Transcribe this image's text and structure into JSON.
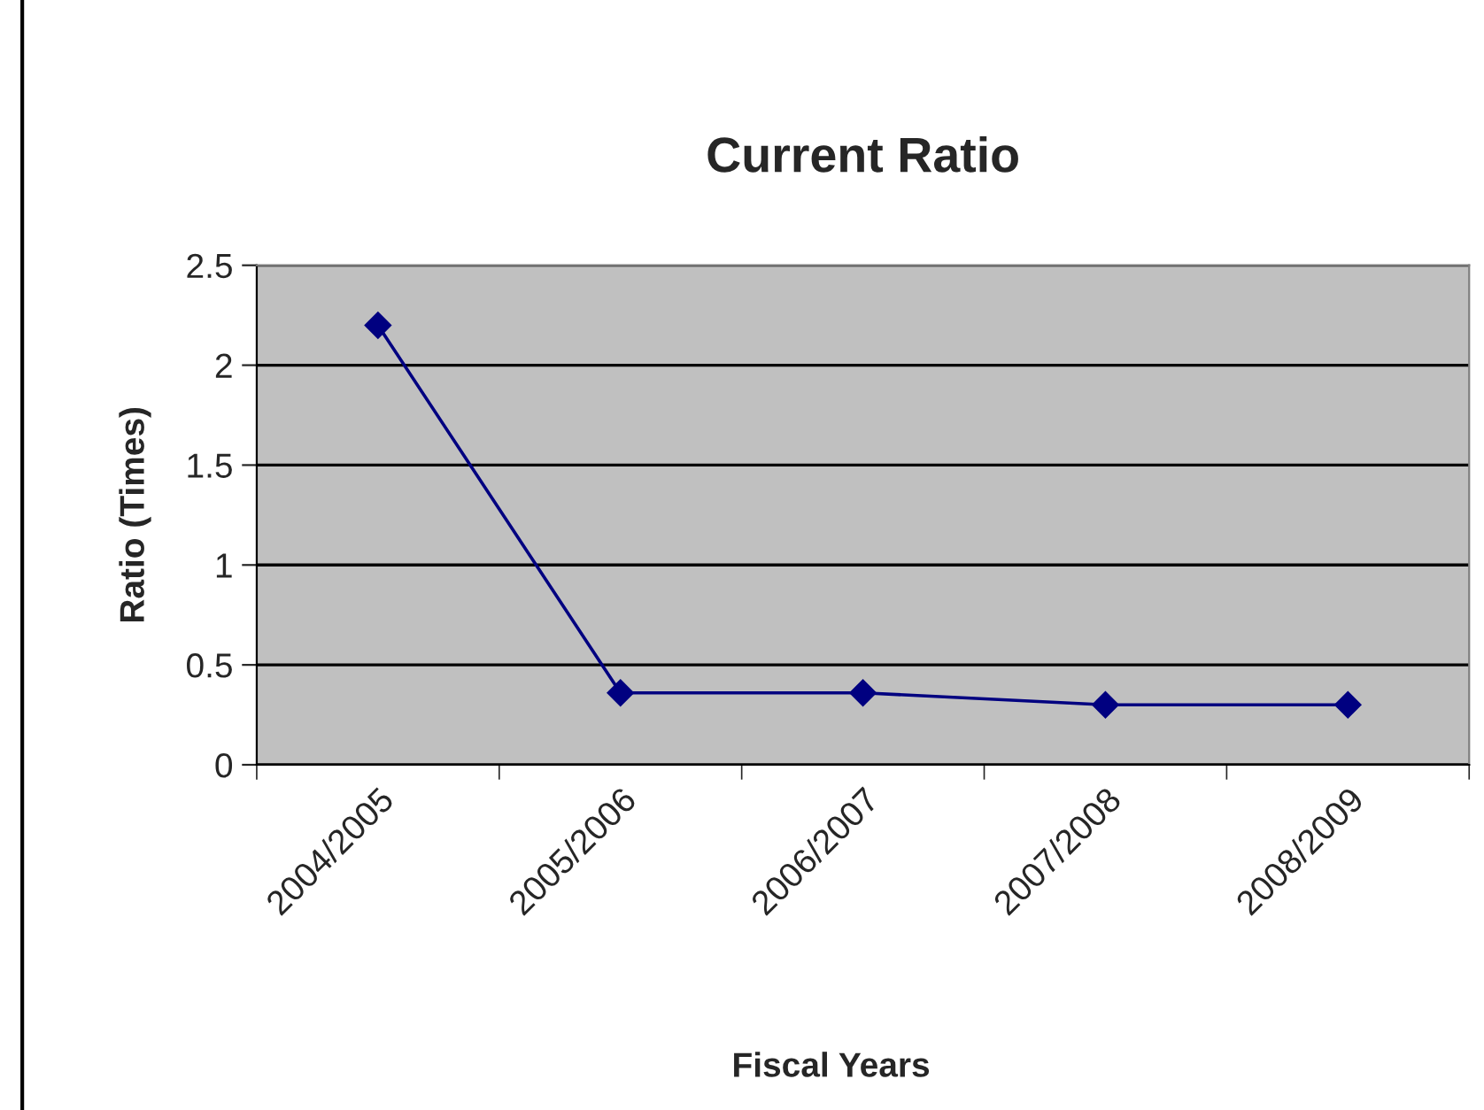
{
  "chart_data": {
    "type": "line",
    "title": "Current Ratio",
    "xlabel": "Fiscal Years",
    "ylabel": "Ratio (Times)",
    "categories": [
      "2004/2005",
      "2005/2006",
      "2006/2007",
      "2007/2008",
      "2008/2009"
    ],
    "series": [
      {
        "color": "#000080",
        "values": [
          2.2,
          0.36,
          0.36,
          0.3,
          0.3
        ]
      }
    ],
    "ylim": [
      0,
      2.5
    ],
    "yticks": [
      0,
      0.5,
      1,
      1.5,
      2,
      2.5
    ],
    "grid": "y",
    "marker": "diamond",
    "line_style": "solid"
  }
}
